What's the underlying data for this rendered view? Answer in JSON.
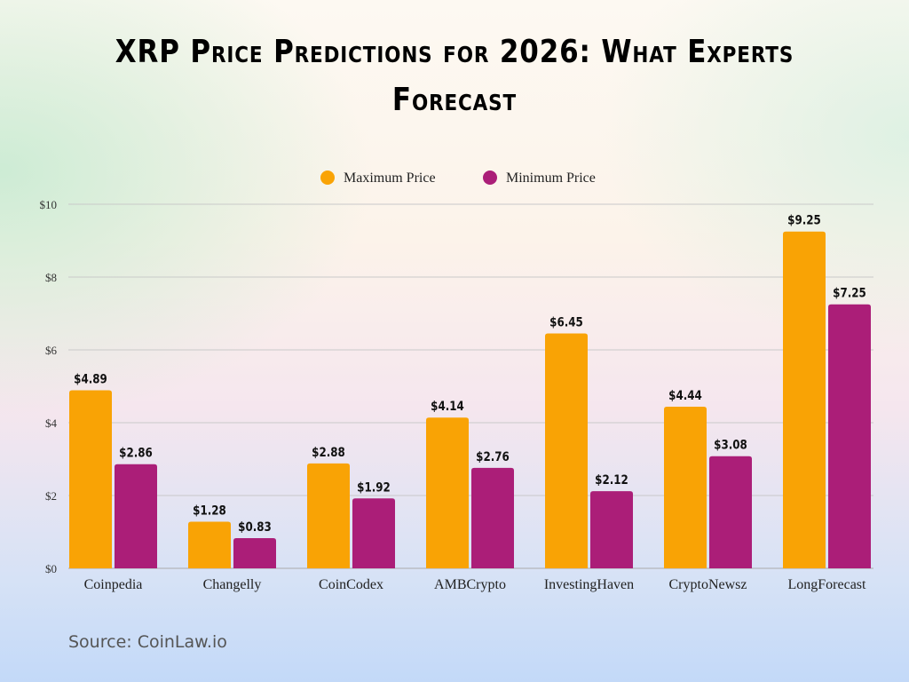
{
  "chart_data": {
    "type": "bar",
    "title": "XRP Price Predictions for 2026: What Experts Forecast",
    "categories": [
      "Coinpedia",
      "Changelly",
      "CoinCodex",
      "AMBCrypto",
      "InvestingHaven",
      "CryptoNewsz",
      "LongForecast"
    ],
    "series": [
      {
        "name": "Maximum Price",
        "color": "#f9a305",
        "values": [
          4.89,
          1.28,
          2.88,
          4.14,
          6.45,
          4.44,
          9.25
        ],
        "labels": [
          "$4.89",
          "$1.28",
          "$2.88",
          "$4.14",
          "$6.45",
          "$4.44",
          "$9.25"
        ]
      },
      {
        "name": "Minimum Price",
        "color": "#ab1e78",
        "values": [
          2.86,
          0.83,
          1.92,
          2.76,
          2.12,
          3.08,
          7.25
        ],
        "labels": [
          "$2.86",
          "$0.83",
          "$1.92",
          "$2.76",
          "$2.12",
          "$3.08",
          "$7.25"
        ]
      }
    ],
    "ylim": [
      0,
      10
    ],
    "yticks": [
      "$0",
      "$2",
      "$4",
      "$6",
      "$8",
      "$10"
    ],
    "grid": true,
    "legend": "top-center"
  },
  "source": "Source: CoinLaw.io"
}
